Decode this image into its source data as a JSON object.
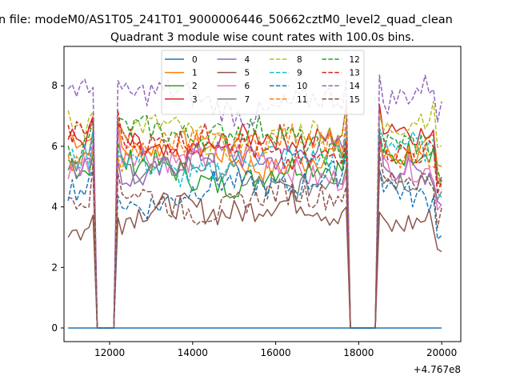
{
  "figure": {
    "suptitle": "n file: modeM0/AS1T05_241T01_9000006446_50662cztM0_level2_quad_clean",
    "offset_text": "+4.767e8"
  },
  "chart_data": {
    "type": "line",
    "title": "Quadrant 3 module wise count rates with 100.0s bins.",
    "xlabel": "",
    "ylabel": "",
    "xlim": [
      10900,
      20460
    ],
    "ylim": [
      -0.45,
      9.3
    ],
    "xticks": [
      12000,
      14000,
      16000,
      18000,
      20000
    ],
    "yticks": [
      0,
      2,
      4,
      6,
      8
    ],
    "x_range": [
      11000,
      20000
    ],
    "x_step": 100,
    "gaps": [
      [
        11700,
        12100
      ],
      [
        17800,
        18400
      ]
    ],
    "legend": {
      "location": "top-center",
      "columns": 4
    },
    "series": [
      {
        "name": "0",
        "color": "#1f77b4",
        "dash": "solid",
        "level": 0.0
      },
      {
        "name": "1",
        "color": "#ff7f0e",
        "dash": "solid",
        "level": 5.8
      },
      {
        "name": "2",
        "color": "#2ca02c",
        "dash": "solid",
        "level": 5.3
      },
      {
        "name": "3",
        "color": "#d62728",
        "dash": "solid",
        "level": 6.2
      },
      {
        "name": "4",
        "color": "#9467bd",
        "dash": "solid",
        "level": 5.5
      },
      {
        "name": "5",
        "color": "#8c564b",
        "dash": "solid",
        "level": 3.7
      },
      {
        "name": "6",
        "color": "#e377c2",
        "dash": "solid",
        "level": 5.4
      },
      {
        "name": "7",
        "color": "#7f7f7f",
        "dash": "solid",
        "level": 5.1
      },
      {
        "name": "8",
        "color": "#bcbd22",
        "dash": "dashed",
        "level": 6.5
      },
      {
        "name": "9",
        "color": "#17becf",
        "dash": "dashed",
        "level": 5.6
      },
      {
        "name": "10",
        "color": "#1f77b4",
        "dash": "dashed",
        "level": 4.6
      },
      {
        "name": "11",
        "color": "#ff7f0e",
        "dash": "dashed",
        "level": 5.9
      },
      {
        "name": "12",
        "color": "#2ca02c",
        "dash": "dashed",
        "level": 6.2
      },
      {
        "name": "13",
        "color": "#d62728",
        "dash": "dashed",
        "level": 6.0
      },
      {
        "name": "14",
        "color": "#9467bd",
        "dash": "dashed",
        "level": 7.6
      },
      {
        "name": "15",
        "color": "#8c564b",
        "dash": "dashed",
        "level": 4.4
      }
    ]
  }
}
